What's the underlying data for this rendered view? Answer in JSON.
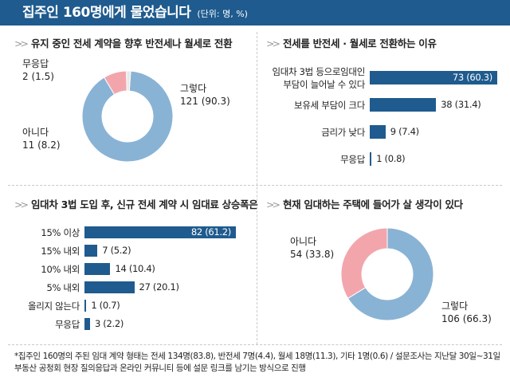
{
  "header": {
    "title": "집주인 160명에게 물었습니다",
    "unit": "(단위: 명, %)"
  },
  "chart_data": [
    {
      "type": "pie",
      "title": "유지 중인 전세 계약을 향후 반전세나 월세로 전환",
      "slices": [
        {
          "label": "그렇다",
          "value": 121,
          "percent": 90.3,
          "color": "#89b3d5"
        },
        {
          "label": "아니다",
          "value": 11,
          "percent": 8.2,
          "color": "#f2a6ac"
        },
        {
          "label": "무응답",
          "value": 2,
          "percent": 1.5,
          "color": "#e9e9e9"
        }
      ]
    },
    {
      "type": "bar",
      "title": "전세를 반전세 · 월세로 전환하는 이유",
      "categories": [
        "임대차 3법 등으로임대인 부담이 늘어날 수 있다",
        "보유세 부담이 크다",
        "금리가 낮다",
        "무응답"
      ],
      "category_lines": [
        [
          "임대차 3법 등으로임대인",
          "부담이 늘어날 수 있다"
        ],
        [
          "보유세 부담이 크다"
        ],
        [
          "금리가 낮다"
        ],
        [
          "무응답"
        ]
      ],
      "values": [
        73,
        38,
        9,
        1
      ],
      "percents": [
        60.3,
        31.4,
        7.4,
        0.8
      ],
      "color": "#1f5b8e"
    },
    {
      "type": "bar",
      "title": "임대차 3법 도입 후, 신규 전세 계약 시 임대료 상승폭은",
      "categories": [
        "15% 이상",
        "15% 내외",
        "10% 내외",
        "5% 내외",
        "올리지 않는다",
        "무응답"
      ],
      "values": [
        82,
        7,
        14,
        27,
        1,
        3
      ],
      "percents": [
        61.2,
        5.2,
        10.4,
        20.1,
        0.7,
        2.2
      ],
      "color": "#1f5b8e"
    },
    {
      "type": "pie",
      "title": "현재 임대하는 주택에 들어가 살 생각이 있다",
      "slices": [
        {
          "label": "그렇다",
          "value": 106,
          "percent": 66.3,
          "color": "#89b3d5"
        },
        {
          "label": "아니다",
          "value": 54,
          "percent": 33.8,
          "color": "#f2a6ac"
        }
      ]
    }
  ],
  "footnote": "*집주인 160명의 주된 임대 계약 형태는 전세 134명(83.8), 반전세 7명(4.4), 월세 18명(11.3), 기타 1명(0.6) / 설문조사는 지난달 30일~31일 부동산 공청회 현장 질의응답과 온라인 커뮤니티 등에 설문 링크를 남기는 방식으로 진행"
}
